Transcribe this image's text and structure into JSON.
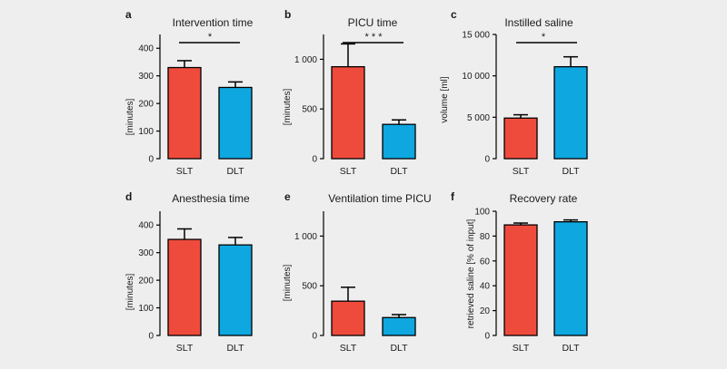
{
  "colors": {
    "slt": "#ef4b3c",
    "dlt": "#0ea7e0",
    "background": "#eeeeee"
  },
  "chart_data": [
    {
      "type": "bar",
      "letter": "a",
      "title": "Intervention time",
      "ylabel": "[minutes]",
      "categories": [
        "SLT",
        "DLT"
      ],
      "values": [
        330,
        258
      ],
      "errors": [
        25,
        20
      ],
      "ylim": [
        0,
        450
      ],
      "yticks": [
        0,
        100,
        200,
        300,
        400
      ],
      "ytick_labels": [
        "0",
        "100",
        "200",
        "300",
        "400"
      ],
      "significance": "*"
    },
    {
      "type": "bar",
      "letter": "b",
      "title": "PICU time",
      "ylabel": "[minutes]",
      "categories": [
        "SLT",
        "DLT"
      ],
      "values": [
        925,
        345
      ],
      "errors": [
        230,
        45
      ],
      "ylim": [
        0,
        1250
      ],
      "yticks": [
        0,
        500,
        1000
      ],
      "ytick_labels": [
        "0",
        "500",
        "1 000"
      ],
      "significance": "* * *"
    },
    {
      "type": "bar",
      "letter": "c",
      "title": "Instilled saline",
      "ylabel": "volume [ml]",
      "categories": [
        "SLT",
        "DLT"
      ],
      "values": [
        4900,
        11100
      ],
      "errors": [
        400,
        1200
      ],
      "ylim": [
        0,
        15000
      ],
      "yticks": [
        0,
        5000,
        10000,
        15000
      ],
      "ytick_labels": [
        "0",
        "5 000",
        "10 000",
        "15 000"
      ],
      "significance": "*"
    },
    {
      "type": "bar",
      "letter": "d",
      "title": "Anesthesia time",
      "ylabel": "[minutes]",
      "categories": [
        "SLT",
        "DLT"
      ],
      "values": [
        348,
        328
      ],
      "errors": [
        38,
        27
      ],
      "ylim": [
        0,
        450
      ],
      "yticks": [
        0,
        100,
        200,
        300,
        400
      ],
      "ytick_labels": [
        "0",
        "100",
        "200",
        "300",
        "400"
      ],
      "significance": ""
    },
    {
      "type": "bar",
      "letter": "e",
      "title": "Ventilation time PICU",
      "ylabel": "[minutes]",
      "categories": [
        "SLT",
        "DLT"
      ],
      "values": [
        345,
        180
      ],
      "errors": [
        140,
        30
      ],
      "ylim": [
        0,
        1250
      ],
      "yticks": [
        0,
        500,
        1000
      ],
      "ytick_labels": [
        "0",
        "500",
        "1 000"
      ],
      "significance": ""
    },
    {
      "type": "bar",
      "letter": "f",
      "title": "Recovery rate",
      "ylabel": "retrieved saline [% of input]",
      "categories": [
        "SLT",
        "DLT"
      ],
      "values": [
        89,
        91.5
      ],
      "errors": [
        1.5,
        1.5
      ],
      "ylim": [
        0,
        100
      ],
      "yticks": [
        0,
        20,
        40,
        60,
        80,
        100
      ],
      "ytick_labels": [
        "0",
        "20",
        "40",
        "60",
        "80",
        "100"
      ],
      "significance": ""
    }
  ]
}
